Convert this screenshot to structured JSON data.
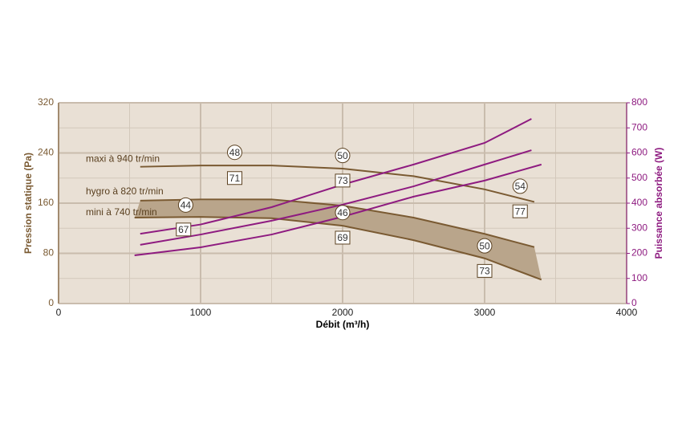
{
  "chart_data": {
    "type": "line",
    "xlabel": "Débit (m³/h)",
    "ylabel": "Pression statique (Pa)",
    "y2label": "Puissance absorbée (W)",
    "xlim": [
      0,
      4000
    ],
    "xticks": [
      0,
      1000,
      2000,
      3000,
      4000
    ],
    "minor_xticks": [
      500,
      1500,
      2500,
      3500
    ],
    "ylim": [
      0,
      320
    ],
    "yticks": [
      0,
      80,
      160,
      240,
      320
    ],
    "minor_yticks": [
      40,
      120,
      200,
      280
    ],
    "y2lim": [
      0,
      800
    ],
    "y2ticks": [
      0,
      100,
      200,
      300,
      400,
      500,
      600,
      700,
      800
    ],
    "grid": true,
    "y_color": "#7a5a32",
    "y2_color": "#8e1b80",
    "background": "#e9e0d5",
    "fill_between": [
      1,
      2
    ],
    "fill_color": "#b9a58b",
    "series": [
      {
        "name": "maxi à 940 tr/min",
        "color": "#7a5a32",
        "axis": "y",
        "label_x": 192,
        "label_y": 230,
        "x": [
          575,
          1000,
          1500,
          2000,
          2500,
          3000,
          3350
        ],
        "values": [
          218,
          220,
          220,
          215,
          203,
          182,
          162
        ]
      },
      {
        "name": "hygro à 820 tr/min",
        "color": "#7a5a32",
        "axis": "y",
        "label_x": 192,
        "label_y": 178,
        "x": [
          575,
          1000,
          1500,
          2000,
          2500,
          3000,
          3350
        ],
        "values": [
          164,
          166,
          166,
          156,
          137,
          111,
          90
        ]
      },
      {
        "name": "mini à 740 tr/min",
        "color": "#7a5a32",
        "axis": "y",
        "label_x": 192,
        "label_y": 145,
        "x": [
          535,
          1000,
          1500,
          2000,
          2500,
          3000,
          3400
        ],
        "values": [
          137,
          138,
          136,
          124,
          101,
          72,
          38
        ]
      },
      {
        "color": "#8e1b80",
        "axis": "y2",
        "x": [
          575,
          1000,
          1500,
          2000,
          2500,
          3000,
          3330
        ],
        "values": [
          278,
          315,
          384,
          474,
          554,
          640,
          736
        ]
      },
      {
        "color": "#8e1b80",
        "axis": "y2",
        "x": [
          575,
          1000,
          1500,
          2000,
          2500,
          3000,
          3330
        ],
        "values": [
          234,
          275,
          330,
          394,
          467,
          554,
          611
        ]
      },
      {
        "color": "#8e1b80",
        "axis": "y2",
        "x": [
          535,
          1000,
          1500,
          2000,
          2500,
          3000,
          3400
        ],
        "values": [
          192,
          224,
          275,
          346,
          426,
          490,
          554
        ]
      }
    ],
    "annotations": [
      {
        "text": "48",
        "shape": "circle",
        "x": 1240,
        "y": 241
      },
      {
        "text": "50",
        "shape": "circle",
        "x": 2000,
        "y": 236
      },
      {
        "text": "54",
        "shape": "circle",
        "x": 3250,
        "y": 187
      },
      {
        "text": "44",
        "shape": "circle",
        "x": 895,
        "y": 157
      },
      {
        "text": "46",
        "shape": "circle",
        "x": 2000,
        "y": 145
      },
      {
        "text": "50",
        "shape": "circle",
        "x": 3000,
        "y": 92
      },
      {
        "text": "71",
        "shape": "square",
        "x": 1240,
        "y": 200
      },
      {
        "text": "73",
        "shape": "square",
        "x": 2000,
        "y": 196
      },
      {
        "text": "77",
        "shape": "square",
        "x": 3250,
        "y": 147
      },
      {
        "text": "67",
        "shape": "square",
        "x": 880,
        "y": 118
      },
      {
        "text": "69",
        "shape": "square",
        "x": 2000,
        "y": 105
      },
      {
        "text": "73",
        "shape": "square",
        "x": 3000,
        "y": 52
      }
    ]
  }
}
